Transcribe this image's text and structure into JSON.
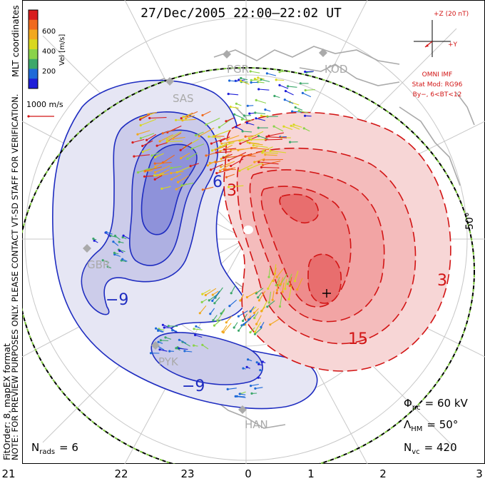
{
  "title": "27/Dec/2005 22:00–22:02 UT",
  "colorbar": {
    "ticks": [
      "600",
      "400",
      "200"
    ],
    "label": "Vel [m/s]",
    "colors": [
      "#d81e1e",
      "#f06a1e",
      "#f2a81e",
      "#d8d81e",
      "#8ad34a",
      "#3ca86a",
      "#1e6ad8",
      "#1e1ed8"
    ]
  },
  "side_labels": {
    "coords": "MLT coordinates",
    "note": "NOTE: FOR PREVIEW PURPOSES ONLY. PLEASE CONTACT VT-SD STAFF FOR VERIFICATION.",
    "fitorder": "FitOrder: 8, mapEX format"
  },
  "scale_vector": "1000 m/s",
  "imf": {
    "bz_label": "+Z (20 nT)",
    "by_label": "+Y",
    "source": "OMNI IMF",
    "model": "Stat Mod: RG96",
    "condition": "By−, 6<BT<12"
  },
  "stations": [
    "SAS",
    "PGR",
    "KOD",
    "GBR",
    "PYK",
    "HAN"
  ],
  "contour_labels": [
    "−9",
    "−9",
    "6",
    "3",
    "15",
    "3"
  ],
  "latitude_label": "50°",
  "stats": {
    "phi_label": "Φ",
    "phi_sub": "pc",
    "phi_value": "= 60 kV",
    "lambda_label": "Λ",
    "lambda_sub": "HM",
    "lambda_value": "= 50°",
    "nvc_label": "N",
    "nvc_sub": "vc",
    "nvc_value": "= 420",
    "nrads_label": "N",
    "nrads_sub": "rads",
    "nrads_value": "= 6"
  },
  "mlt_ticks": [
    "21",
    "22",
    "23",
    "0",
    "1",
    "2",
    "3"
  ],
  "theme": {
    "negative": "#1e2cc0",
    "positive": "#d21414",
    "land": "#aaaaaa",
    "grid": "#c8c8c8"
  }
}
